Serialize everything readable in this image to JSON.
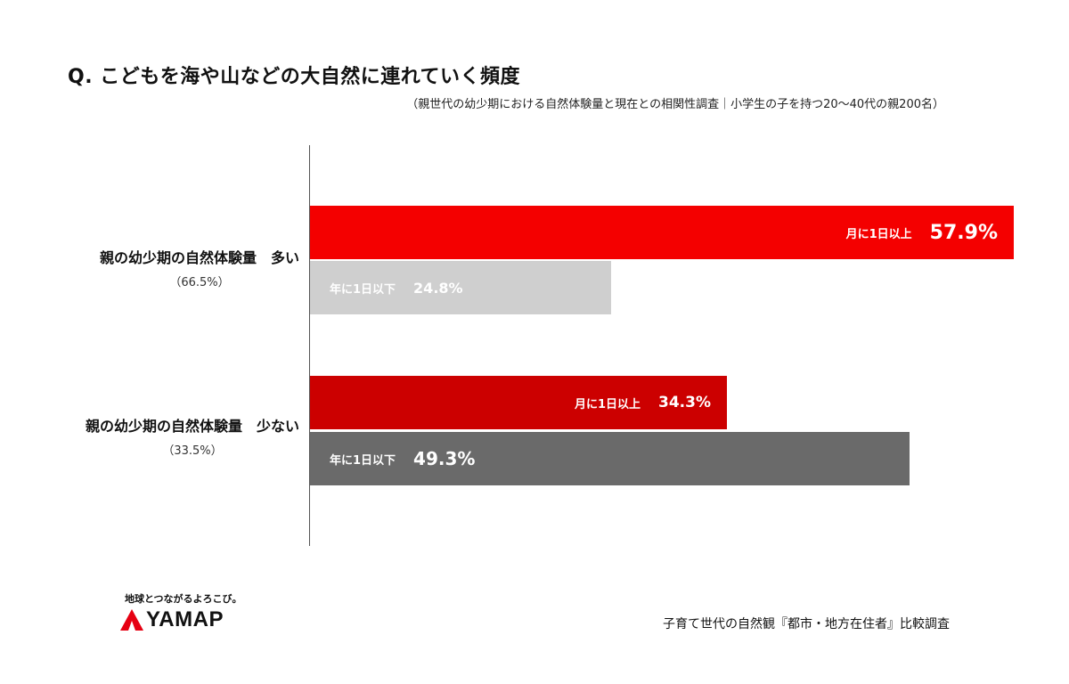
{
  "title": "Q. こどもを海や山などの大自然に連れていく頻度",
  "subtitle": "（親世代の幼少期における自然体験量と現在との相関性調査｜小学生の子を持つ20〜40代の親200名）",
  "chart_data": {
    "type": "bar",
    "orientation": "horizontal",
    "title": "Q. こどもを海や山などの大自然に連れていく頻度",
    "subtitle": "（親世代の幼少期における自然体験量と現在との相関性調査｜小学生の子を持つ20〜40代の親200名）",
    "groups": [
      {
        "name": "親の幼少期の自然体験量　多い",
        "share": "（66.5%）",
        "bars": [
          {
            "category": "月に1日以上",
            "value": 57.9,
            "label": "57.9%",
            "color": "#f40000",
            "text_color": "#ffffff"
          },
          {
            "category": "年に1日以下",
            "value": 24.8,
            "label": "24.8%",
            "color": "#cfcfcf",
            "text_color": "#ffffff"
          }
        ]
      },
      {
        "name": "親の幼少期の自然体験量　少ない",
        "share": "（33.5%）",
        "bars": [
          {
            "category": "月に1日以上",
            "value": 34.3,
            "label": "34.3%",
            "color": "#cc0000",
            "text_color": "#ffffff"
          },
          {
            "category": "年に1日以下",
            "value": 49.3,
            "label": "49.3%",
            "color": "#6a6a6a",
            "text_color": "#ffffff"
          }
        ]
      }
    ],
    "xlim": [
      0,
      57.9
    ],
    "legend": "none",
    "grid": false
  },
  "footer": {
    "tagline": "地球とつながるよろこび。",
    "logo_text": "YAMAP",
    "logo_color": "#e60012",
    "source": "子育て世代の自然観『都市・地方在住者』比較調査"
  }
}
